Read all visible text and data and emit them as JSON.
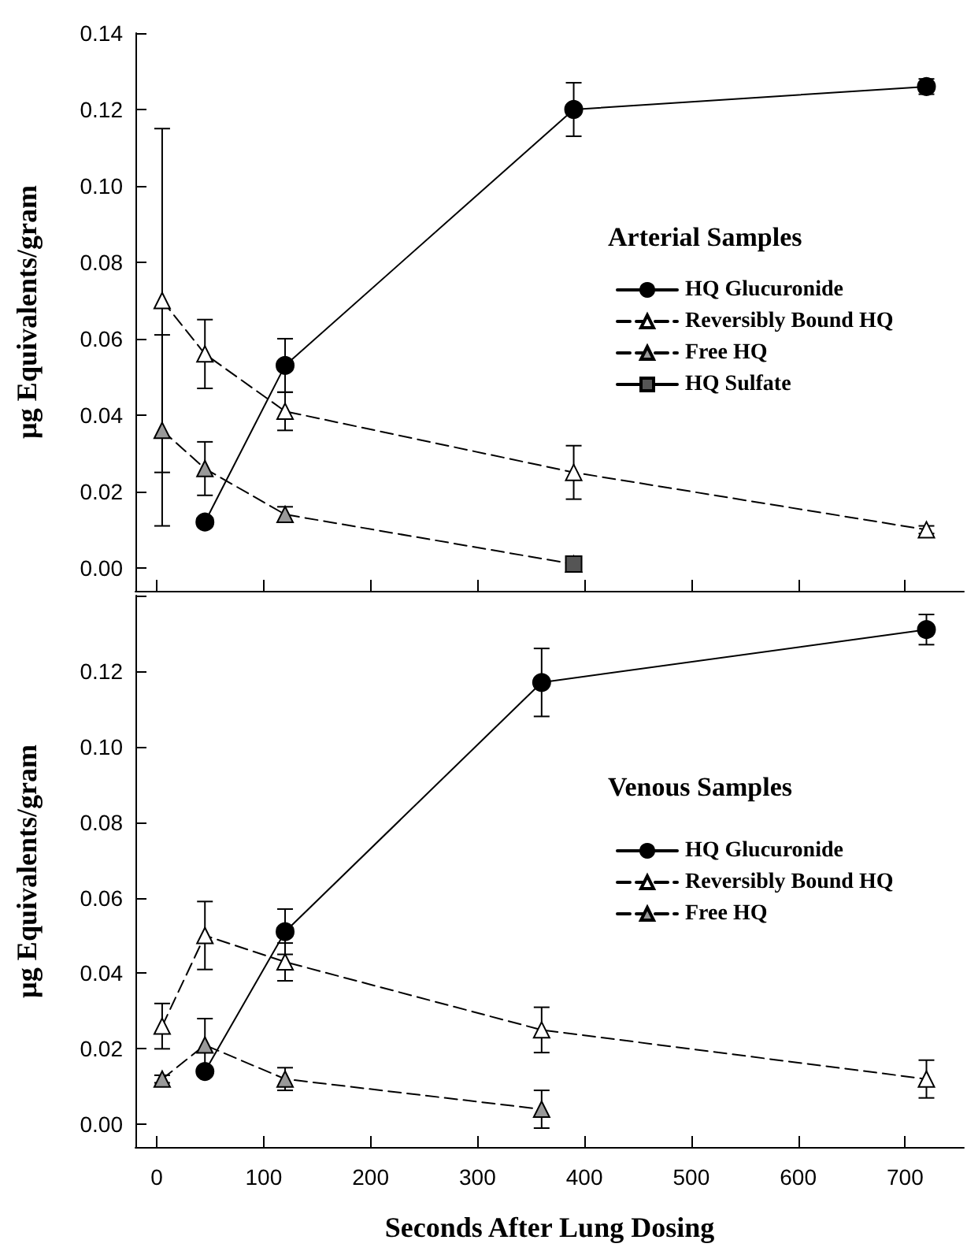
{
  "chart_data": [
    {
      "type": "line",
      "ylabel": "µg Equivalents/gram",
      "legend_title": "Arterial Samples",
      "legend": "right",
      "tick_labels": "y",
      "grid": false,
      "x": [
        5,
        45,
        120,
        390,
        720
      ],
      "xlim": [
        -20,
        755
      ],
      "xticks": [
        0,
        100,
        200,
        300,
        400,
        500,
        600,
        700
      ],
      "ylim": [
        -0.006,
        0.14
      ],
      "yticks": [
        {
          "value": 0,
          "label": "0.00"
        },
        {
          "value": 0.02,
          "label": "0.02"
        },
        {
          "value": 0.04,
          "label": "0.04"
        },
        {
          "value": 0.06,
          "label": "0.06"
        },
        {
          "value": 0.08,
          "label": "0.08"
        },
        {
          "value": 0.1,
          "label": "0.10"
        },
        {
          "value": 0.12,
          "label": "0.12"
        },
        {
          "value": 0.14,
          "label": "0.14"
        }
      ],
      "series": [
        {
          "name": "HQ Glucuronide",
          "color": "#000000",
          "marker": "circle",
          "line_style": "solid",
          "values": [
            null,
            0.012,
            0.053,
            0.12,
            0.126
          ],
          "errors": [
            null,
            0.001,
            0.007,
            0.007,
            0.002
          ]
        },
        {
          "name": "Reversibly Bound HQ",
          "color": "#ffffff",
          "marker": "triangle",
          "line_style": "dashed",
          "values": [
            0.07,
            0.056,
            0.041,
            0.025,
            0.01
          ],
          "errors": [
            0.045,
            0.009,
            0.005,
            0.007,
            0.001
          ]
        },
        {
          "name": "Free HQ",
          "color": "#999999",
          "marker": "triangle",
          "line_style": "dashed",
          "values": [
            0.036,
            0.026,
            0.014,
            0.001,
            null
          ],
          "errors": [
            0.025,
            0.007,
            0.002,
            null,
            null
          ]
        },
        {
          "name": "HQ Sulfate",
          "color": "#555555",
          "marker": "square",
          "line_style": "solid",
          "x": [
            390
          ],
          "values": [
            0.001
          ]
        }
      ]
    },
    {
      "type": "line",
      "xlabel": "Seconds After Lung Dosing",
      "ylabel": "µg Equivalents/gram",
      "legend_title": "Venous Samples",
      "legend": "right",
      "grid": false,
      "x": [
        5,
        45,
        120,
        360,
        720
      ],
      "xlim": [
        -20,
        755
      ],
      "xticks": [
        0,
        100,
        200,
        300,
        400,
        500,
        600,
        700
      ],
      "ylim": [
        -0.006,
        0.14
      ],
      "yticks": [
        {
          "value": 0,
          "label": "0.00"
        },
        {
          "value": 0.02,
          "label": "0.02"
        },
        {
          "value": 0.04,
          "label": "0.04"
        },
        {
          "value": 0.06,
          "label": "0.06"
        },
        {
          "value": 0.08,
          "label": "0.08"
        },
        {
          "value": 0.1,
          "label": "0.10"
        },
        {
          "value": 0.12,
          "label": "0.12"
        },
        {
          "value": 0.14,
          "label": null
        }
      ],
      "series": [
        {
          "name": "HQ Glucuronide",
          "color": "#000000",
          "marker": "circle",
          "line_style": "solid",
          "values": [
            null,
            0.014,
            0.051,
            0.117,
            0.131
          ],
          "errors": [
            null,
            null,
            0.006,
            0.009,
            0.004
          ]
        },
        {
          "name": "Reversibly Bound HQ",
          "color": "#ffffff",
          "marker": "triangle",
          "line_style": "dashed",
          "values": [
            0.026,
            0.05,
            0.043,
            0.025,
            0.012
          ],
          "errors": [
            0.006,
            0.009,
            0.005,
            0.006,
            0.005
          ]
        },
        {
          "name": "Free HQ",
          "color": "#999999",
          "marker": "triangle",
          "line_style": "dashed",
          "values": [
            0.012,
            0.021,
            0.012,
            0.004,
            null
          ],
          "errors": [
            0.001,
            0.007,
            0.003,
            0.005,
            null
          ]
        }
      ]
    }
  ]
}
